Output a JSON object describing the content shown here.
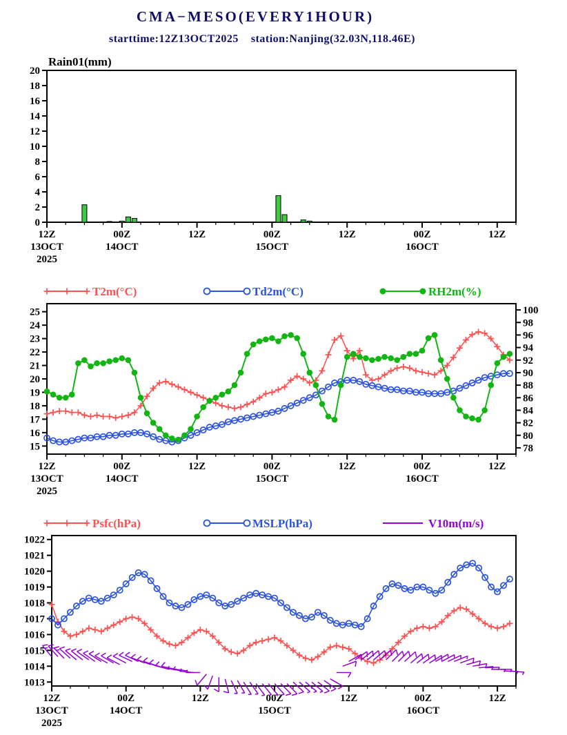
{
  "header": {
    "title": "CMA−MESO(EVERY1HOUR)",
    "subtitle": "starttime:12Z13OCT2025    station:Nanjing(32.03N,118.46E)",
    "text_color": "#0d0d6b"
  },
  "time_axis": {
    "range_hours": [
      0,
      75
    ],
    "interval_hours": 1,
    "minor_step_hours": 3,
    "major_tick_hours": [
      0,
      12,
      24,
      36,
      48,
      60,
      72
    ],
    "tick_labels": [
      [
        "12Z",
        "13OCT",
        "2025"
      ],
      [
        "00Z",
        "14OCT"
      ],
      [
        "12Z"
      ],
      [
        "00Z",
        "15OCT"
      ],
      [
        "12Z"
      ],
      [
        "00Z",
        "16OCT"
      ],
      [
        "12Z"
      ]
    ]
  },
  "chart_data": [
    {
      "type": "bar",
      "title": "Rain01(mm)",
      "ylabel": "Rain01(mm)",
      "ylim": [
        0,
        20
      ],
      "yticks": [
        0,
        2,
        4,
        6,
        8,
        10,
        12,
        14,
        16,
        18,
        20
      ],
      "bar_color": "#3fca3f",
      "bar_edge_color": "#000000",
      "values": [
        0,
        0,
        0,
        0,
        0,
        0,
        2.3,
        0,
        0,
        0,
        0.1,
        0,
        0.15,
        0.7,
        0.5,
        0,
        0,
        0,
        0,
        0,
        0,
        0,
        0,
        0,
        0,
        0,
        0,
        0,
        0,
        0,
        0,
        0,
        0,
        0,
        0,
        0,
        0,
        3.5,
        1,
        0,
        0,
        0.3,
        0.15,
        0,
        0,
        0,
        0,
        0,
        0,
        0,
        0,
        0,
        0,
        0,
        0,
        0,
        0,
        0,
        0,
        0,
        0,
        0,
        0,
        0,
        0,
        0,
        0,
        0,
        0,
        0,
        0,
        0,
        0,
        0,
        0
      ]
    },
    {
      "type": "line",
      "left_ylim": [
        14.4,
        25.6
      ],
      "left_yticks": [
        15,
        16,
        17,
        18,
        19,
        20,
        21,
        22,
        23,
        24,
        25
      ],
      "right_ylim": [
        77,
        101
      ],
      "right_yticks": [
        78,
        80,
        82,
        84,
        86,
        88,
        90,
        92,
        94,
        96,
        98,
        100
      ],
      "series": [
        {
          "name": "T2m(°C)",
          "axis": "left",
          "color": "#ff5050",
          "marker": "plus",
          "values": [
            17.4,
            17.5,
            17.6,
            17.6,
            17.5,
            17.5,
            17.3,
            17.2,
            17.3,
            17.2,
            17.2,
            17.1,
            17.2,
            17.3,
            17.5,
            18,
            18.7,
            19.3,
            19.7,
            19.8,
            19.6,
            19.4,
            19.2,
            19,
            18.8,
            18.6,
            18.4,
            18.2,
            18,
            17.9,
            17.8,
            17.9,
            18.1,
            18.3,
            18.6,
            18.9,
            19,
            19.2,
            19.4,
            19.9,
            20.2,
            20,
            19.7,
            19.9,
            20.6,
            21.8,
            22.9,
            23.2,
            22.1,
            21.5,
            22.1,
            20.3,
            19.9,
            20,
            20.3,
            20.6,
            20.8,
            20.9,
            20.8,
            20.6,
            20.5,
            20.4,
            20.3,
            20.6,
            21,
            21.6,
            22.3,
            22.9,
            23.3,
            23.5,
            23.4,
            23,
            22.4,
            21.8,
            21.4
          ]
        },
        {
          "name": "Td2m(°C)",
          "axis": "left",
          "color": "#2a52de",
          "marker": "open-circle",
          "values": [
            15.6,
            15.4,
            15.3,
            15.3,
            15.4,
            15.5,
            15.6,
            15.6,
            15.7,
            15.7,
            15.8,
            15.8,
            15.9,
            15.9,
            16,
            16,
            15.9,
            15.7,
            15.5,
            15.4,
            15.3,
            15.4,
            15.6,
            15.8,
            16,
            16.2,
            16.4,
            16.5,
            16.6,
            16.8,
            16.9,
            17,
            17.1,
            17.2,
            17.3,
            17.4,
            17.5,
            17.6,
            17.8,
            18,
            18.2,
            18.4,
            18.6,
            18.8,
            19.1,
            19.4,
            19.7,
            19.8,
            19.9,
            19.9,
            19.8,
            19.6,
            19.5,
            19.4,
            19.3,
            19.2,
            19.2,
            19.1,
            19.1,
            19,
            19,
            18.9,
            18.9,
            18.9,
            19,
            19.1,
            19.3,
            19.5,
            19.7,
            19.9,
            20.1,
            20.2,
            20.3,
            20.4,
            20.4
          ]
        },
        {
          "name": "RH2m(%)",
          "axis": "right",
          "color": "#12b512",
          "marker": "dot",
          "values": [
            87,
            86.5,
            86,
            86,
            86.5,
            91.5,
            92,
            91,
            91.5,
            91.5,
            91.8,
            92,
            92.3,
            92,
            90,
            86,
            83.5,
            82,
            81,
            80,
            79.5,
            79.3,
            80,
            81,
            83,
            84.5,
            85.5,
            86,
            86.5,
            87,
            88,
            90,
            93,
            94.5,
            95,
            95.3,
            95.5,
            95,
            95.8,
            96,
            95.5,
            93,
            90,
            88,
            85,
            83,
            82.5,
            88,
            92.5,
            93,
            92.5,
            92.3,
            92,
            92.2,
            92.5,
            92.3,
            92,
            92.5,
            93,
            93,
            93.5,
            95.5,
            96,
            92,
            89,
            86,
            84,
            83,
            82.7,
            82.5,
            84,
            88,
            91.5,
            92.5,
            93
          ]
        }
      ]
    },
    {
      "type": "line",
      "left_ylim": [
        1012.75,
        1022.25
      ],
      "left_yticks": [
        1013,
        1014,
        1015,
        1016,
        1017,
        1018,
        1019,
        1020,
        1021,
        1022
      ],
      "series": [
        {
          "name": "Psfc(hPa)",
          "axis": "left",
          "color": "#ff5050",
          "marker": "plus",
          "values": [
            1017.9,
            1016.8,
            1016.2,
            1015.9,
            1016,
            1016.2,
            1016.4,
            1016.3,
            1016.2,
            1016.4,
            1016.6,
            1016.8,
            1017,
            1017.1,
            1017,
            1016.7,
            1016.3,
            1015.9,
            1015.6,
            1015.4,
            1015.3,
            1015.5,
            1015.8,
            1016.1,
            1016.3,
            1016.2,
            1015.9,
            1015.5,
            1015.1,
            1014.9,
            1014.8,
            1015,
            1015.3,
            1015.5,
            1015.6,
            1015.7,
            1015.8,
            1015.6,
            1015.3,
            1015,
            1014.7,
            1014.5,
            1014.4,
            1014.6,
            1014.9,
            1015.2,
            1015.3,
            1015.2,
            1015.1,
            1014.8,
            1014.5,
            1014.3,
            1014.2,
            1014.4,
            1014.7,
            1015.1,
            1015.5,
            1015.9,
            1016.2,
            1016.4,
            1016.5,
            1016.4,
            1016.5,
            1016.8,
            1017.2,
            1017.5,
            1017.7,
            1017.6,
            1017.3,
            1017,
            1016.7,
            1016.5,
            1016.4,
            1016.5,
            1016.7
          ]
        },
        {
          "name": "MSLP(hPa)",
          "axis": "left",
          "color": "#2a52de",
          "marker": "open-circle",
          "values": [
            1017,
            1016.6,
            1017,
            1017.4,
            1017.8,
            1018.1,
            1018.3,
            1018.2,
            1018.1,
            1018.3,
            1018.5,
            1018.8,
            1019.2,
            1019.6,
            1019.9,
            1019.8,
            1019.4,
            1018.9,
            1018.4,
            1018,
            1017.8,
            1017.7,
            1017.9,
            1018.2,
            1018.4,
            1018.5,
            1018.3,
            1018,
            1017.8,
            1017.9,
            1018.1,
            1018.3,
            1018.5,
            1018.6,
            1018.5,
            1018.4,
            1018.3,
            1018,
            1017.7,
            1017.4,
            1017.2,
            1017,
            1017.1,
            1017.4,
            1017.2,
            1016.9,
            1016.7,
            1016.6,
            1016.7,
            1016.6,
            1016.5,
            1017,
            1017.8,
            1018.4,
            1018.9,
            1019.2,
            1019.1,
            1018.9,
            1018.8,
            1019,
            1019,
            1018.8,
            1018.6,
            1018.8,
            1019.3,
            1019.8,
            1020.2,
            1020.4,
            1020.5,
            1020.2,
            1019.6,
            1019,
            1018.7,
            1019.1,
            1019.5
          ]
        },
        {
          "name": "V10m(m/s)",
          "axis": "left",
          "color": "#9400d3",
          "marker": "wind-barb",
          "speed_ms": [
            6,
            6,
            6,
            5,
            5,
            5,
            5,
            5,
            5,
            4,
            4,
            4,
            4,
            5,
            5,
            5,
            5,
            4,
            4,
            4,
            4,
            3,
            3,
            3,
            3,
            4,
            4,
            4,
            4,
            3,
            3,
            2,
            2,
            2,
            3,
            3,
            3,
            4,
            4,
            4,
            3,
            3,
            3,
            4,
            4,
            4,
            4,
            5,
            5,
            5,
            5,
            4,
            4,
            4,
            5,
            5,
            5,
            4,
            4,
            4,
            4,
            4,
            3,
            3,
            3,
            3,
            4,
            4,
            3,
            3,
            3,
            2,
            2,
            2,
            2
          ],
          "direction_deg": [
            320,
            318,
            315,
            312,
            310,
            308,
            305,
            305,
            302,
            300,
            300,
            298,
            298,
            295,
            295,
            292,
            290,
            290,
            288,
            285,
            282,
            280,
            278,
            275,
            270,
            220,
            200,
            180,
            165,
            155,
            150,
            148,
            145,
            143,
            140,
            140,
            138,
            135,
            135,
            133,
            132,
            130,
            130,
            128,
            125,
            120,
            90,
            70,
            60,
            55,
            52,
            50,
            50,
            48,
            45,
            45,
            45,
            48,
            50,
            52,
            55,
            58,
            60,
            62,
            65,
            68,
            70,
            75,
            80,
            85,
            88,
            90,
            90,
            92,
            95
          ],
          "plot_level_hpa": [
            1014.6,
            1014.6,
            1014.5,
            1014.5,
            1014.4,
            1014.4,
            1014.4,
            1014.3,
            1014.3,
            1014.2,
            1014.2,
            1014.1,
            1014.2,
            1014.3,
            1014.3,
            1014.2,
            1014.1,
            1014,
            1013.9,
            1013.8,
            1013.8,
            1013.7,
            1013.7,
            1013.6,
            1013.6,
            1013.5,
            1013.4,
            1013.3,
            1013.2,
            1013.1,
            1013.1,
            1013,
            1013,
            1012.9,
            1012.9,
            1012.9,
            1012.9,
            1012.9,
            1012.9,
            1013,
            1013,
            1013,
            1013,
            1013,
            1013.1,
            1013.2,
            1013.6,
            1014,
            1014.3,
            1014.4,
            1014.4,
            1014.4,
            1014.4,
            1014.4,
            1014.4,
            1014.3,
            1014.3,
            1014.3,
            1014.2,
            1014.2,
            1014.2,
            1014.2,
            1014.3,
            1014.3,
            1014.3,
            1014.3,
            1014.2,
            1014.1,
            1014,
            1013.9,
            1013.9,
            1013.8,
            1013.8,
            1013.7,
            1013.7
          ]
        }
      ]
    }
  ]
}
